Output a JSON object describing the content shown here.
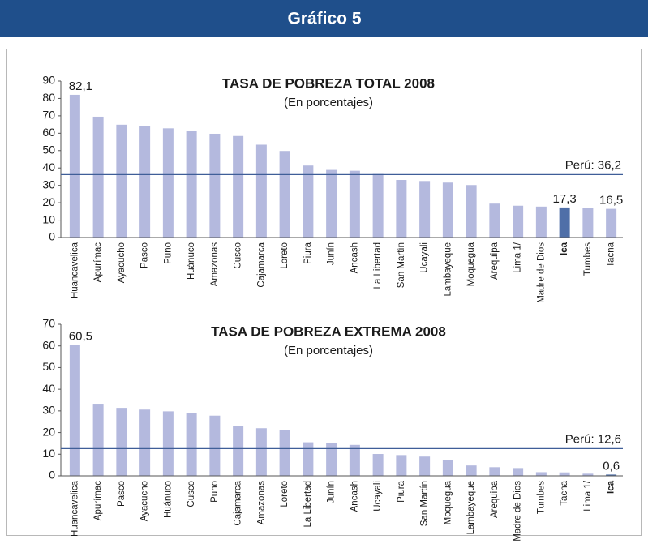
{
  "header": {
    "title": "Gráfico 5"
  },
  "chart_data": [
    {
      "type": "bar",
      "title": "TASA DE POBREZA TOTAL 2008",
      "subtitle": "(En porcentajes)",
      "categories": [
        "Huancavelica",
        "Apurímac",
        "Ayacucho",
        "Pasco",
        "Puno",
        "Huánuco",
        "Amazonas",
        "Cusco",
        "Cajamarca",
        "Loreto",
        "Piura",
        "Junín",
        "Ancash",
        "La Libertad",
        "San Martín",
        "Ucayali",
        "Lambayeque",
        "Moquegua",
        "Arequipa",
        "Lima 1/",
        "Madre de Dios",
        "Ica",
        "Tumbes",
        "Tacna"
      ],
      "values": [
        82.1,
        69.5,
        64.9,
        64.3,
        62.8,
        61.5,
        59.7,
        58.4,
        53.4,
        49.8,
        41.4,
        38.9,
        38.4,
        36.6,
        33.1,
        32.5,
        31.6,
        30.2,
        19.5,
        18.3,
        17.8,
        17.3,
        16.9,
        16.5
      ],
      "value_labels": [
        "82,1",
        null,
        null,
        null,
        null,
        null,
        null,
        null,
        null,
        null,
        null,
        null,
        null,
        null,
        null,
        null,
        null,
        null,
        null,
        null,
        null,
        "17,3",
        null,
        "16,5"
      ],
      "color": "#b4b9de",
      "highlight": "Ica",
      "highlight_color": "#4f6fa8",
      "reference": {
        "label": "Perú: 36,2",
        "value": 36.2,
        "color": "#3f5e98"
      },
      "ylim": [
        0,
        90
      ],
      "yticks": [
        0,
        10,
        20,
        30,
        40,
        50,
        60,
        70,
        80,
        90
      ]
    },
    {
      "type": "bar",
      "title": "TASA DE POBREZA EXTREMA 2008",
      "subtitle": "(En porcentajes)",
      "categories": [
        "Huancavelica",
        "Apurímac",
        "Pasco",
        "Ayacucho",
        "Huánuco",
        "Cusco",
        "Puno",
        "Cajamarca",
        "Amazonas",
        "Loreto",
        "La Libertad",
        "Junín",
        "Ancash",
        "Ucayali",
        "Piura",
        "San Martín",
        "Moquegua",
        "Lambayeque",
        "Arequipa",
        "Madre de Dios",
        "Tumbes",
        "Tacna",
        "Lima 1/",
        "Ica"
      ],
      "values": [
        60.5,
        33.3,
        31.4,
        30.6,
        29.8,
        29.1,
        27.8,
        23.0,
        22.0,
        21.2,
        15.5,
        15.1,
        14.3,
        10.1,
        9.6,
        8.9,
        7.3,
        4.8,
        4.0,
        3.6,
        1.7,
        1.6,
        1.0,
        0.6
      ],
      "value_labels": [
        "60,5",
        null,
        null,
        null,
        null,
        null,
        null,
        null,
        null,
        null,
        null,
        null,
        null,
        null,
        null,
        null,
        null,
        null,
        null,
        null,
        null,
        null,
        null,
        "0,6"
      ],
      "color": "#b4b9de",
      "highlight": "Ica",
      "highlight_color": "#4f6fa8",
      "reference": {
        "label": "Perú: 12,6",
        "value": 12.6,
        "color": "#3f5e98"
      },
      "ylim": [
        0,
        70
      ],
      "yticks": [
        0,
        10,
        20,
        30,
        40,
        50,
        60,
        70
      ]
    }
  ]
}
